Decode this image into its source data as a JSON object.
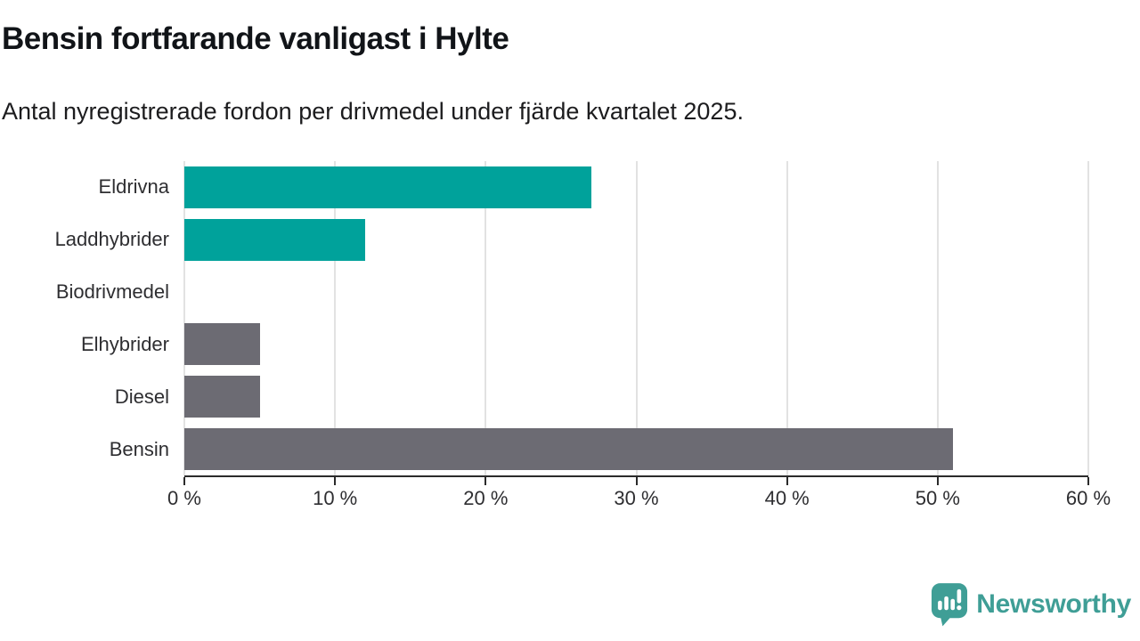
{
  "header": {
    "title": "Bensin fortfarande vanligast i Hylte",
    "subtitle": "Antal nyregistrerade fordon per drivmedel under fjärde kvartalet 2025."
  },
  "chart_data": {
    "type": "bar",
    "orientation": "horizontal",
    "title": "Bensin fortfarande vanligast i Hylte",
    "subtitle": "Antal nyregistrerade fordon per drivmedel under fjärde kvartalet 2025.",
    "categories": [
      "Eldrivna",
      "Laddhybrider",
      "Biodrivmedel",
      "Elhybrider",
      "Diesel",
      "Bensin"
    ],
    "values": [
      27,
      12,
      0,
      5,
      5,
      51
    ],
    "value_unit": "%",
    "bar_colors": [
      "#00a29b",
      "#00a29b",
      "#00a29b",
      "#6c6b73",
      "#6c6b73",
      "#6c6b73"
    ],
    "xlim": [
      0,
      60
    ],
    "x_ticks": [
      0,
      10,
      20,
      30,
      40,
      50,
      60
    ],
    "x_tick_labels": [
      "0 %",
      "10 %",
      "20 %",
      "30 %",
      "40 %",
      "50 %",
      "60 %"
    ],
    "grid": true,
    "legend": "none",
    "grid_color": "#e2e2e2",
    "axis_color": "#2b2b2b"
  },
  "footer": {
    "brand": "Newsworthy",
    "brand_color": "#3f9e96",
    "logo_icon": "newsworthy-speech-bubble-chart-icon"
  }
}
